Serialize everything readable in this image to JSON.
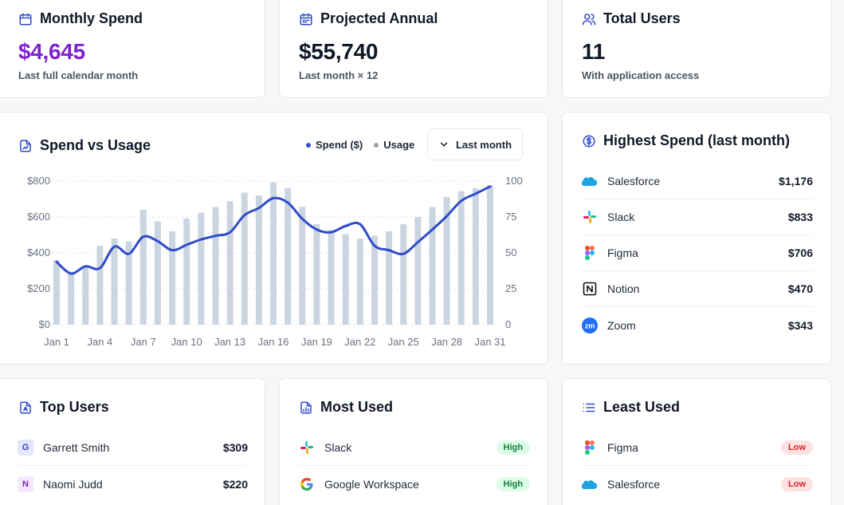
{
  "stats": [
    {
      "title": "Monthly Spend",
      "value": "$4,645",
      "sub": "Last full calendar month",
      "value_color": "#7e22ce"
    },
    {
      "title": "Projected Annual",
      "value": "$55,740",
      "sub": "Last month × 12",
      "value_color": "#111827"
    },
    {
      "title": "Total Users",
      "value": "11",
      "sub": "With application access",
      "value_color": "#111827"
    }
  ],
  "spend_usage": {
    "title": "Spend vs Usage",
    "legend_spend": "Spend ($)",
    "legend_usage": "Usage",
    "range_label": "Last month"
  },
  "chart_data": {
    "type": "bar",
    "x": [
      "Jan 1",
      "Jan 2",
      "Jan 3",
      "Jan 4",
      "Jan 5",
      "Jan 6",
      "Jan 7",
      "Jan 8",
      "Jan 9",
      "Jan 10",
      "Jan 11",
      "Jan 12",
      "Jan 13",
      "Jan 14",
      "Jan 15",
      "Jan 16",
      "Jan 17",
      "Jan 18",
      "Jan 19",
      "Jan 20",
      "Jan 21",
      "Jan 22",
      "Jan 23",
      "Jan 24",
      "Jan 25",
      "Jan 26",
      "Jan 27",
      "Jan 28",
      "Jan 29",
      "Jan 30",
      "Jan 31"
    ],
    "x_tick_labels": [
      "Jan 1",
      "Jan 4",
      "Jan 7",
      "Jan 10",
      "Jan 13",
      "Jan 16",
      "Jan 19",
      "Jan 22",
      "Jan 25",
      "Jan 28",
      "Jan 31"
    ],
    "series": [
      {
        "name": "Usage",
        "type": "bar",
        "axis": "right",
        "color": "#cbd5e1",
        "values": [
          45,
          37,
          41,
          55,
          60,
          58,
          80,
          72,
          65,
          74,
          78,
          82,
          86,
          92,
          90,
          99,
          95,
          82,
          70,
          66,
          63,
          60,
          62,
          65,
          70,
          75,
          82,
          89,
          93,
          95,
          97
        ]
      },
      {
        "name": "Spend ($)",
        "type": "line",
        "axis": "left",
        "color": "#2f4cc9",
        "values": [
          350,
          285,
          325,
          315,
          435,
          395,
          490,
          465,
          415,
          445,
          475,
          495,
          515,
          610,
          650,
          705,
          680,
          590,
          530,
          515,
          550,
          560,
          440,
          415,
          395,
          460,
          530,
          605,
          690,
          730,
          770
        ]
      }
    ],
    "y_left": {
      "min": 0,
      "max": 800,
      "ticks": [
        "$0",
        "$200",
        "$400",
        "$600",
        "$800"
      ]
    },
    "y_right": {
      "min": 0,
      "max": 100,
      "ticks": [
        "0",
        "25",
        "50",
        "75",
        "100"
      ]
    },
    "grid": true,
    "legend": "top-right"
  },
  "highest_spend": {
    "title": "Highest Spend (last month)",
    "items": [
      {
        "name": "Salesforce",
        "amount": "$1,176",
        "icon": "salesforce-icon"
      },
      {
        "name": "Slack",
        "amount": "$833",
        "icon": "slack-icon"
      },
      {
        "name": "Figma",
        "amount": "$706",
        "icon": "figma-icon"
      },
      {
        "name": "Notion",
        "amount": "$470",
        "icon": "notion-icon"
      },
      {
        "name": "Zoom",
        "amount": "$343",
        "icon": "zoom-icon"
      }
    ]
  },
  "top_users": {
    "title": "Top Users",
    "items": [
      {
        "initial": "G",
        "name": "Garrett Smith",
        "amount": "$309",
        "bg": "#e0e7ff",
        "fg": "#4338ca"
      },
      {
        "initial": "N",
        "name": "Naomi Judd",
        "amount": "$220",
        "bg": "#f3e8ff",
        "fg": "#7e22ce"
      }
    ]
  },
  "most_used": {
    "title": "Most Used",
    "items": [
      {
        "name": "Slack",
        "badge": "High",
        "icon": "slack-icon"
      },
      {
        "name": "Google Workspace",
        "badge": "High",
        "icon": "google-icon"
      }
    ]
  },
  "least_used": {
    "title": "Least Used",
    "items": [
      {
        "name": "Figma",
        "badge": "Low",
        "icon": "figma-icon"
      },
      {
        "name": "Salesforce",
        "badge": "Low",
        "icon": "salesforce-icon"
      }
    ]
  }
}
